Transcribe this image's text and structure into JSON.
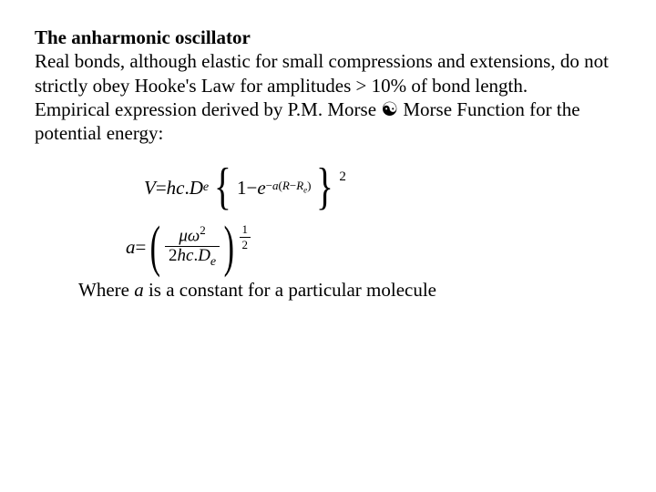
{
  "title": "The anharmonic oscillator",
  "para1_a": "Real bonds, although elastic for small compressions and extensions, do not strictly obey Hooke's Law for amplitudes ",
  "para1_b": "10% of bond length.",
  "gt": ">",
  "para2_a": "Empirical expression derived by P.M. Morse ",
  "arrow": "☯",
  "para2_b": " Morse Function for the potential energy:",
  "eq1": {
    "lhs_V": "V",
    "eq": " = ",
    "hc": "hc",
    "dot1": ".",
    "D": "D",
    "e_sub": "e",
    "one": "1",
    "minus": " − ",
    "e_base": "e",
    "exp_neg": "−",
    "exp_a": "a",
    "exp_lp": "(",
    "exp_R": "R",
    "exp_m": "−",
    "exp_Re_R": "R",
    "exp_Re_e": "e",
    "exp_rp": ")",
    "outer2": "2"
  },
  "eq2": {
    "a": "a",
    "eq": " = ",
    "mu": "μ",
    "omega": "ω",
    "sq": "2",
    "two": "2",
    "hc": "hc",
    "dot": ".",
    "D": "D",
    "e_sub": "e",
    "half_n": "1",
    "half_d": "2"
  },
  "where_a": "Where ",
  "where_var": "a",
  "where_b": " is a constant for a particular molecule"
}
